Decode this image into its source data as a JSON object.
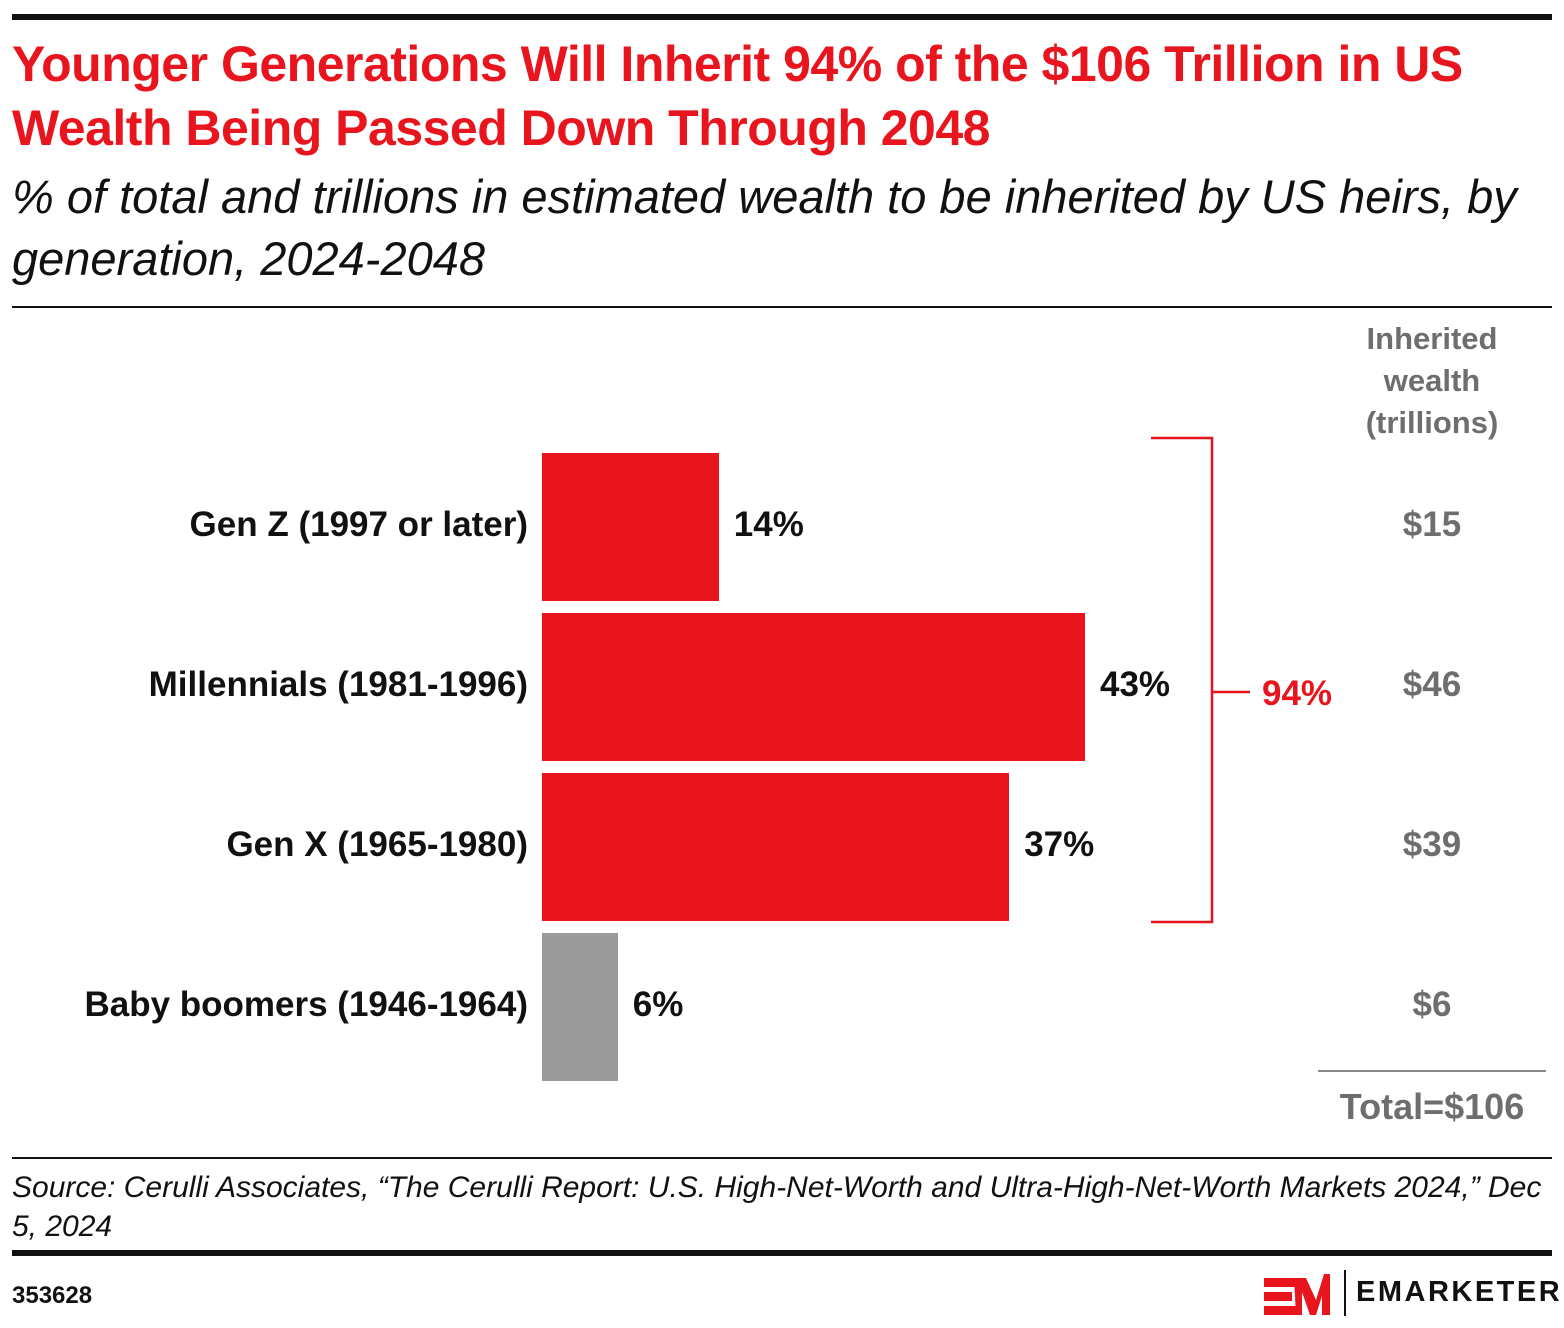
{
  "title": "Younger Generations Will Inherit 94% of the $106 Trillion in US Wealth Being Passed Down Through 2048",
  "subtitle": "% of total and trillions in estimated wealth to be inherited by US heirs, by generation, 2024-2048",
  "chart_data": {
    "type": "bar",
    "orientation": "horizontal",
    "categories": [
      "Gen Z (1997 or later)",
      "Millennials (1981-1996)",
      "Gen X (1965-1980)",
      "Baby boomers (1946-1964)"
    ],
    "values": [
      14,
      43,
      37,
      6
    ],
    "value_labels": [
      "14%",
      "43%",
      "37%",
      "6%"
    ],
    "bar_colors": [
      "#e8141e",
      "#e8141e",
      "#e8141e",
      "#9b9b9b"
    ],
    "bracket": {
      "covers": [
        "Gen Z (1997 or later)",
        "Millennials (1981-1996)",
        "Gen X (1965-1980)"
      ],
      "label": "94%",
      "color": "#e8141e"
    },
    "side_column": {
      "header": "Inherited wealth (trillions)",
      "values": [
        "$15",
        "$46",
        "$39",
        "$6"
      ],
      "total": "Total=$106"
    },
    "grid": false
  },
  "source": "Source: Cerulli Associates, “The Cerulli Report: U.S. High-Net-Worth and Ultra-High-Net-Worth Markets 2024,” Dec 5, 2024",
  "chart_id": "353628",
  "logo": {
    "text": "EMARKETER",
    "mark": "EM",
    "color": "#e8141e"
  }
}
